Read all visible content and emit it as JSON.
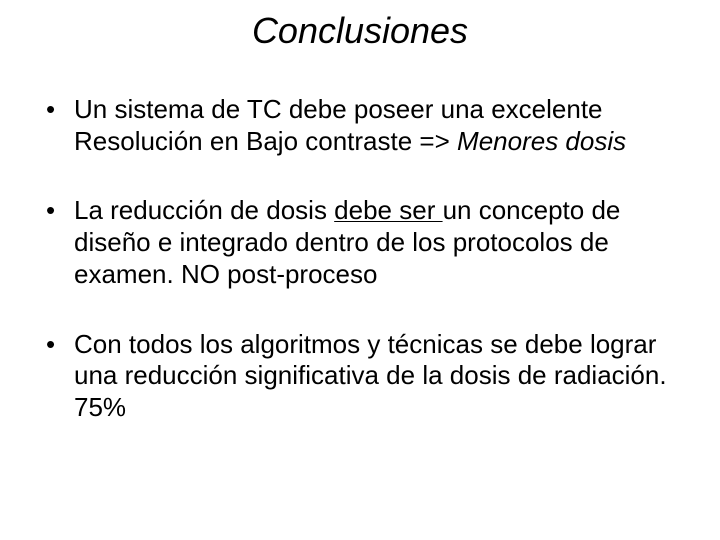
{
  "slide": {
    "title": "Conclusiones",
    "title_fontsize": 36,
    "title_fontstyle": "italic",
    "title_color": "#000000",
    "background_color": "#ffffff",
    "body_fontsize": 26,
    "body_color": "#000000",
    "bullets": [
      {
        "runs": [
          {
            "t": "Un sistema de TC debe poseer una excelente Resolución en Bajo contraste => "
          },
          {
            "t": "Menores dosis",
            "italic": true
          }
        ]
      },
      {
        "runs": [
          {
            "t": "La reducción de dosis "
          },
          {
            "t": "debe ser ",
            "underline": true
          },
          {
            "t": "un concepto de diseño e integrado dentro de los protocolos de examen. NO post-proceso"
          }
        ]
      },
      {
        "runs": [
          {
            "t": "Con todos los algoritmos y técnicas se debe lograr una reducción significativa de la dosis de radiación. 75%"
          }
        ]
      }
    ]
  }
}
